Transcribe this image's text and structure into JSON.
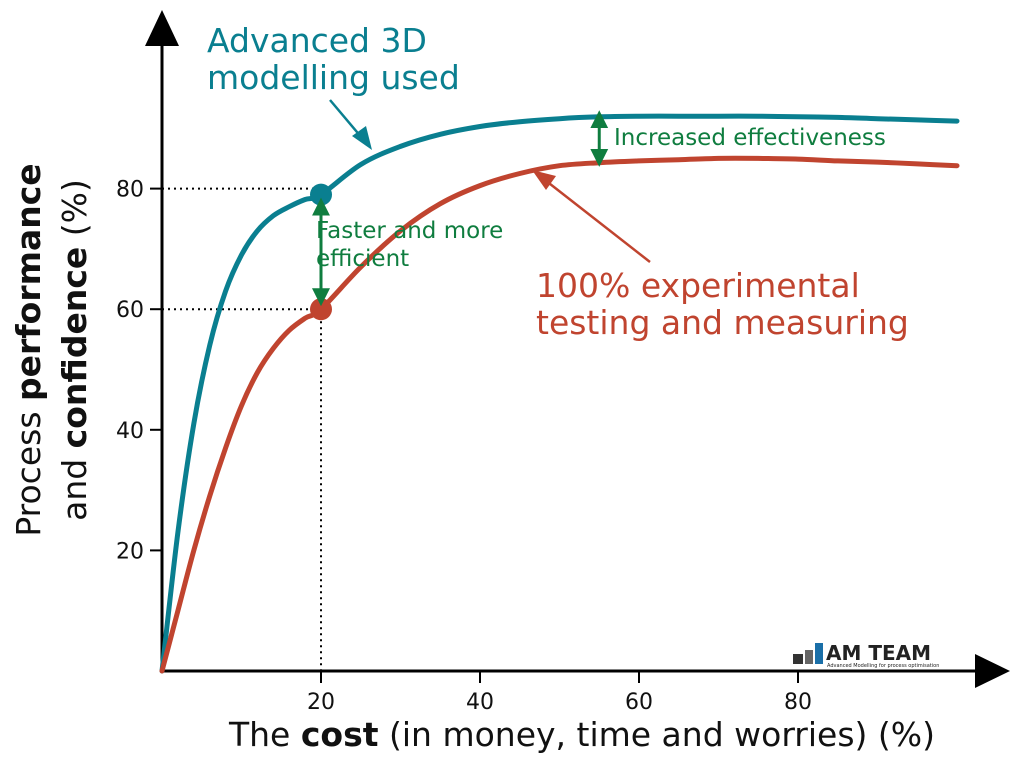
{
  "chart_data": {
    "type": "line",
    "xlabel_prefix": "The ",
    "xlabel_bold": "cost",
    "xlabel_suffix": " (in money, time and worries) (%)",
    "ylabel_line1_prefix": "Process ",
    "ylabel_line1_bold": "performance",
    "ylabel_line2_prefix": "and ",
    "ylabel_line2_bold": "confidence",
    "ylabel_line2_suffix": " (%)",
    "xlim": [
      0,
      100
    ],
    "ylim": [
      0,
      100
    ],
    "x_ticks": [
      20,
      40,
      60,
      80
    ],
    "y_ticks": [
      20,
      40,
      60,
      80
    ],
    "x": [
      0,
      2,
      4,
      6,
      8,
      10,
      12,
      14,
      16,
      18,
      20,
      25,
      30,
      35,
      40,
      45,
      50,
      55,
      60,
      65,
      70,
      75,
      80,
      85,
      90,
      95,
      100
    ],
    "series": [
      {
        "name": "Advanced 3D modelling used",
        "color": "#0a7f90",
        "values": [
          0,
          23,
          41,
          54,
          63,
          69,
          73,
          75.5,
          77,
          78.2,
          79,
          84,
          87,
          89,
          90.3,
          91.1,
          91.6,
          91.9,
          92,
          92,
          92,
          92,
          91.9,
          91.8,
          91.6,
          91.4,
          91.2
        ]
      },
      {
        "name": "100% experimental testing and measuring",
        "color": "#c0442f",
        "values": [
          0,
          10,
          20,
          29,
          37,
          44,
          49.5,
          53.5,
          56.5,
          58.5,
          60,
          67,
          73,
          77.5,
          80.5,
          82.5,
          83.8,
          84.3,
          84.6,
          84.8,
          85,
          85,
          84.9,
          84.6,
          84.4,
          84.1,
          83.8
        ]
      }
    ],
    "markers": [
      {
        "x": 20,
        "y": 79,
        "color": "#0a7f90"
      },
      {
        "x": 20,
        "y": 60,
        "color": "#c0442f"
      }
    ],
    "guide_lines": [
      {
        "x": 20,
        "y": 80
      },
      {
        "x": 20,
        "y": 60
      }
    ],
    "annotations": {
      "blue_label_line1": "Advanced 3D",
      "blue_label_line2": "modelling used",
      "red_label_line1": "100% experimental",
      "red_label_line2": "testing and measuring",
      "green_top": "Increased effectiveness",
      "green_mid_line1": "Faster and more",
      "green_mid_line2": "efficient",
      "green_top_arrow_x": 55,
      "green_top_arrow_y_from": 92,
      "green_top_arrow_y_to": 84.6,
      "green_mid_arrow_x": 20,
      "green_mid_arrow_y_from": 79,
      "green_mid_arrow_y_to": 60
    },
    "green_color": "#0f7d3f",
    "grid": false,
    "legend": "none"
  },
  "logo": {
    "main": "AM TEAM",
    "sub": "Advanced Modelling for process optimisation",
    "color_dark": "#222222",
    "color_accent": "#1a6fa8"
  }
}
